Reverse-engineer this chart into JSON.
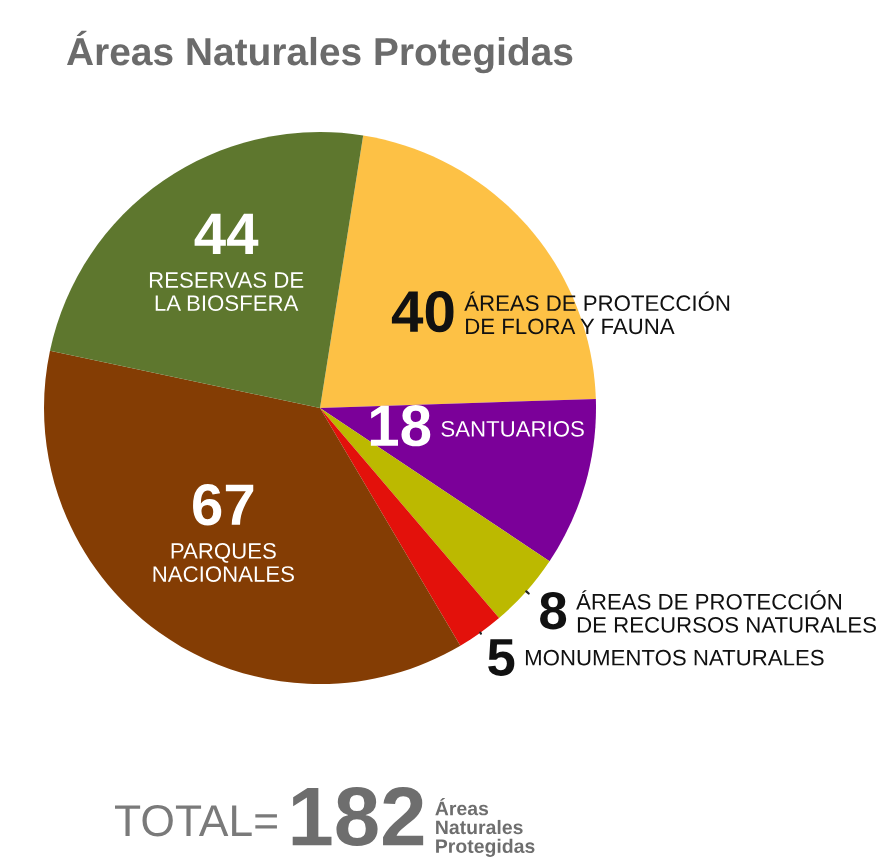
{
  "chart_data": {
    "type": "pie",
    "title": "Áreas Naturales Protegidas",
    "categories": [
      "ÁREAS DE PROTECCIÓN\nDE FLORA Y FAUNA",
      "SANTUARIOS",
      "ÁREAS DE PROTECCIÓN\nDE RECURSOS NATURALES",
      "MONUMENTOS NATURALES",
      "PARQUES\nNACIONALES",
      "RESERVAS DE\nLA BIOSFERA"
    ],
    "values": [
      40,
      18,
      8,
      5,
      67,
      44
    ],
    "colors": [
      "#fdc145",
      "#7b0099",
      "#bcb900",
      "#e3110b",
      "#843d04",
      "#5e772e"
    ],
    "data_labels": true,
    "annotations": [
      "TOTAL=",
      "182",
      "Áreas\nNaturales\nProtegidas"
    ]
  }
}
